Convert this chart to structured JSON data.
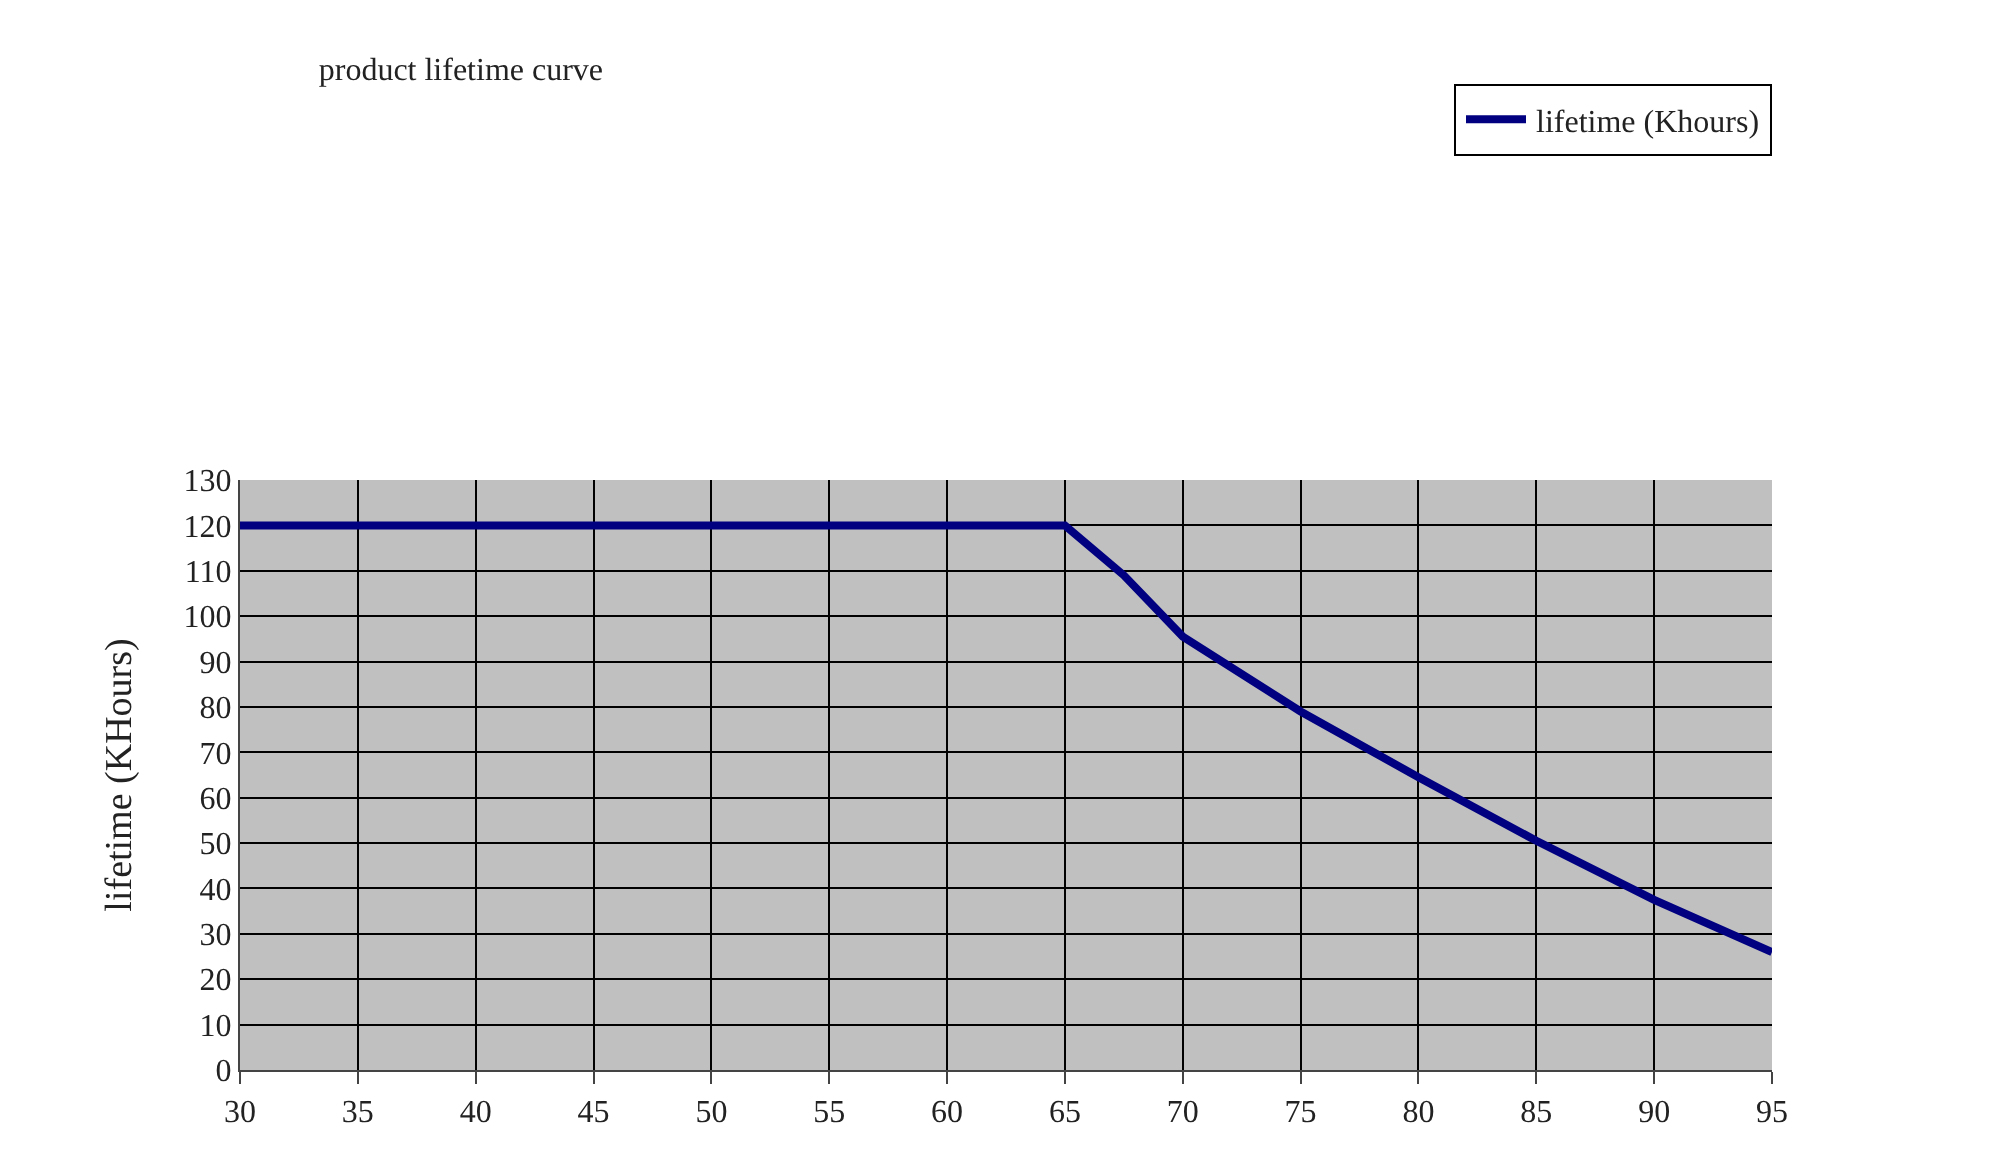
{
  "chart_data": {
    "type": "line",
    "title": "product lifetime curve",
    "ylabel": "lifetime (KHours)",
    "x": [
      30,
      35,
      40,
      45,
      50,
      55,
      60,
      65,
      67.5,
      70,
      75,
      80,
      85,
      90,
      95
    ],
    "series": [
      {
        "name": "lifetime (Khours)",
        "color": "#000080",
        "values": [
          120,
          120,
          120,
          120,
          120,
          120,
          120,
          120,
          109,
          95.5,
          79,
          64.5,
          50.5,
          37.5,
          26
        ]
      }
    ],
    "xlim": [
      30,
      95
    ],
    "xticks": [
      30,
      35,
      40,
      45,
      50,
      55,
      60,
      65,
      70,
      75,
      80,
      85,
      90,
      95
    ],
    "ylim": [
      0,
      130
    ],
    "yticks": [
      0,
      10,
      20,
      30,
      40,
      50,
      60,
      70,
      80,
      90,
      100,
      110,
      120,
      130
    ],
    "grid": true,
    "legend": "top right",
    "marker": "none",
    "line_style": "solid"
  }
}
